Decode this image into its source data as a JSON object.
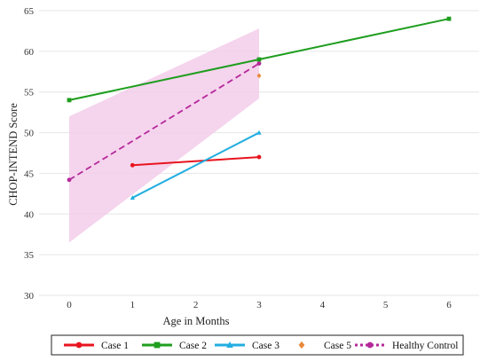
{
  "chart_data": {
    "type": "line",
    "title": "",
    "xlabel": "Age in Months",
    "ylabel": "CHOP-INTEND Score",
    "xlim": [
      0,
      6
    ],
    "ylim": [
      30,
      65
    ],
    "xticks": [
      0,
      1,
      2,
      3,
      4,
      5,
      6
    ],
    "yticks": [
      30,
      35,
      40,
      45,
      50,
      55,
      60,
      65
    ],
    "grid": "horizontal",
    "legend_position": "bottom",
    "band": {
      "color": "#f3cdea",
      "x": [
        0,
        3
      ],
      "lower": [
        36.5,
        54.2
      ],
      "upper": [
        52.0,
        62.8
      ]
    },
    "series": [
      {
        "name": "Case 1",
        "color": "#e8141e",
        "style": "solid",
        "marker": "circle",
        "points": [
          [
            1,
            46.0
          ],
          [
            3,
            47.0
          ]
        ]
      },
      {
        "name": "Case 2",
        "color": "#1e9e1e",
        "style": "solid",
        "marker": "square",
        "points": [
          [
            0,
            54.0
          ],
          [
            3,
            59.0
          ],
          [
            6,
            64.0
          ]
        ]
      },
      {
        "name": "Case 3",
        "color": "#22aee0",
        "style": "solid",
        "marker": "triangle",
        "points": [
          [
            1,
            42.0
          ],
          [
            3,
            50.0
          ]
        ]
      },
      {
        "name": "Case 5",
        "color": "#e8883a",
        "style": "none",
        "marker": "diamond",
        "points": [
          [
            3,
            57.0
          ]
        ]
      },
      {
        "name": "Healthy Control",
        "color": "#b5289a",
        "style": "dashed",
        "marker": "circle",
        "points": [
          [
            0,
            44.2
          ],
          [
            3,
            58.5
          ]
        ]
      }
    ]
  }
}
